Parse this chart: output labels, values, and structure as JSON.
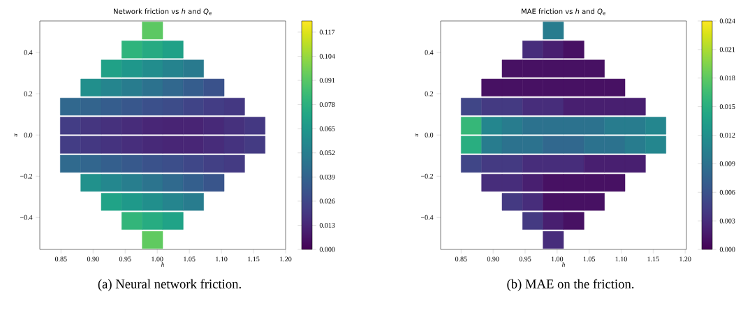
{
  "chart_data": [
    {
      "type": "heatmap",
      "title": "Network friction vs *h* and *Q*$_{e}$",
      "xlabel": "h",
      "ylabel": "u",
      "xlim": [
        0.817,
        1.2
      ],
      "ylim": [
        -0.555,
        0.553
      ],
      "xticks": [
        {
          "value": 0.85,
          "label": "0.85"
        },
        {
          "value": 0.9,
          "label": "0.90"
        },
        {
          "value": 0.95,
          "label": "0.95"
        },
        {
          "value": 1.0,
          "label": "1.00"
        },
        {
          "value": 1.05,
          "label": "1.05"
        },
        {
          "value": 1.1,
          "label": "1.10"
        },
        {
          "value": 1.15,
          "label": "1.15"
        },
        {
          "value": 1.2,
          "label": "1.20"
        }
      ],
      "yticks": [
        {
          "value": -0.4,
          "label": "−0.4"
        },
        {
          "value": -0.2,
          "label": "−0.2"
        },
        {
          "value": 0.0,
          "label": "0.0"
        },
        {
          "value": 0.2,
          "label": "0.2"
        },
        {
          "value": 0.4,
          "label": "0.4"
        }
      ],
      "cells": [
        [
          null,
          null,
          null,
          null,
          null,
          0.092,
          null,
          null,
          null,
          null,
          null,
          null
        ],
        [
          null,
          null,
          null,
          null,
          0.08,
          0.075,
          0.07,
          null,
          null,
          null,
          null,
          null
        ],
        [
          null,
          null,
          null,
          0.07,
          0.065,
          0.06,
          0.055,
          0.05,
          null,
          null,
          null,
          null
        ],
        [
          null,
          null,
          0.061,
          0.056,
          0.051,
          0.046,
          0.041,
          0.036,
          0.031,
          null,
          null,
          null
        ],
        [
          null,
          0.041,
          0.039,
          0.036,
          0.033,
          0.03,
          0.028,
          0.025,
          0.022,
          0.02,
          null,
          null
        ],
        [
          null,
          0.022,
          0.019,
          0.017,
          0.015,
          0.013,
          0.012,
          0.012,
          0.014,
          0.017,
          0.02,
          null
        ],
        [
          null,
          0.022,
          0.02,
          0.018,
          0.016,
          0.014,
          0.013,
          0.013,
          0.015,
          0.018,
          0.021,
          null
        ],
        [
          null,
          0.042,
          0.04,
          0.037,
          0.034,
          0.031,
          0.029,
          0.026,
          0.023,
          0.021,
          null,
          null
        ],
        [
          null,
          null,
          0.062,
          0.057,
          0.052,
          0.047,
          0.042,
          0.037,
          0.032,
          null,
          null,
          null
        ],
        [
          null,
          null,
          null,
          0.071,
          0.066,
          0.061,
          0.056,
          0.051,
          null,
          null,
          null,
          null
        ],
        [
          null,
          null,
          null,
          null,
          0.081,
          0.076,
          0.071,
          null,
          null,
          null,
          null,
          null
        ],
        [
          null,
          null,
          null,
          null,
          null,
          0.093,
          null,
          null,
          null,
          null,
          null,
          null
        ]
      ],
      "clim": [
        0,
        0.123
      ],
      "cticks": [
        {
          "value": 0.0,
          "label": "0.000"
        },
        {
          "value": 0.013,
          "label": "0.013"
        },
        {
          "value": 0.026,
          "label": "0.026"
        },
        {
          "value": 0.039,
          "label": "0.039"
        },
        {
          "value": 0.052,
          "label": "0.052"
        },
        {
          "value": 0.065,
          "label": "0.065"
        },
        {
          "value": 0.078,
          "label": "0.078"
        },
        {
          "value": 0.091,
          "label": "0.091"
        },
        {
          "value": 0.104,
          "label": "0.104"
        },
        {
          "value": 0.117,
          "label": "0.117"
        }
      ],
      "annotations": [
        "(a) Neural network friction."
      ]
    },
    {
      "type": "heatmap",
      "title": "MAE friction vs *h* and *Q*$_{e}$",
      "xlabel": "h",
      "ylabel": "u",
      "xlim": [
        0.818,
        1.202
      ],
      "ylim": [
        -0.555,
        0.553
      ],
      "xticks": [
        {
          "value": 0.85,
          "label": "0.85"
        },
        {
          "value": 0.9,
          "label": "0.90"
        },
        {
          "value": 0.95,
          "label": "0.95"
        },
        {
          "value": 1.0,
          "label": "1.00"
        },
        {
          "value": 1.05,
          "label": "1.05"
        },
        {
          "value": 1.1,
          "label": "1.10"
        },
        {
          "value": 1.15,
          "label": "1.15"
        },
        {
          "value": 1.2,
          "label": "1.20"
        }
      ],
      "yticks": [
        {
          "value": -0.4,
          "label": "−0.4"
        },
        {
          "value": -0.2,
          "label": "−0.2"
        },
        {
          "value": 0.0,
          "label": "0.0"
        },
        {
          "value": 0.2,
          "label": "0.2"
        },
        {
          "value": 0.4,
          "label": "0.4"
        }
      ],
      "cells": [
        [
          null,
          null,
          null,
          null,
          null,
          0.01,
          null,
          null,
          null,
          null,
          null,
          null
        ],
        [
          null,
          null,
          null,
          null,
          0.003,
          0.002,
          0.001,
          null,
          null,
          null,
          null,
          null
        ],
        [
          null,
          null,
          null,
          0.001,
          0.001,
          0.001,
          0.001,
          0.001,
          null,
          null,
          null,
          null
        ],
        [
          null,
          null,
          0.001,
          0.001,
          0.001,
          0.001,
          0.001,
          0.001,
          0.001,
          null,
          null,
          null
        ],
        [
          null,
          0.005,
          0.004,
          0.004,
          0.003,
          0.003,
          0.002,
          0.002,
          0.002,
          0.002,
          null,
          null
        ],
        [
          null,
          0.016,
          0.011,
          0.01,
          0.009,
          0.009,
          0.009,
          0.009,
          0.01,
          0.01,
          0.011,
          null
        ],
        [
          null,
          0.015,
          0.01,
          0.009,
          0.009,
          0.008,
          0.008,
          0.009,
          0.009,
          0.01,
          0.011,
          null
        ],
        [
          null,
          0.005,
          0.004,
          0.004,
          0.003,
          0.003,
          0.003,
          0.002,
          0.002,
          0.002,
          null,
          null
        ],
        [
          null,
          null,
          0.003,
          0.003,
          0.002,
          0.001,
          0.001,
          0.001,
          0.001,
          null,
          null,
          null
        ],
        [
          null,
          null,
          null,
          0.004,
          0.003,
          0.001,
          0.001,
          0.001,
          null,
          null,
          null,
          null
        ],
        [
          null,
          null,
          null,
          null,
          0.004,
          0.002,
          0.001,
          null,
          null,
          null,
          null,
          null
        ],
        [
          null,
          null,
          null,
          null,
          null,
          0.003,
          null,
          null,
          null,
          null,
          null,
          null
        ]
      ],
      "clim": [
        0,
        0.024
      ],
      "cticks": [
        {
          "value": 0.0,
          "label": "0.000"
        },
        {
          "value": 0.003,
          "label": "0.003"
        },
        {
          "value": 0.006,
          "label": "0.006"
        },
        {
          "value": 0.009,
          "label": "0.009"
        },
        {
          "value": 0.012,
          "label": "0.012"
        },
        {
          "value": 0.015,
          "label": "0.015"
        },
        {
          "value": 0.018,
          "label": "0.018"
        },
        {
          "value": 0.021,
          "label": "0.021"
        },
        {
          "value": 0.024,
          "label": "0.024"
        }
      ],
      "annotations": [
        "(b) MAE on the friction."
      ]
    }
  ]
}
